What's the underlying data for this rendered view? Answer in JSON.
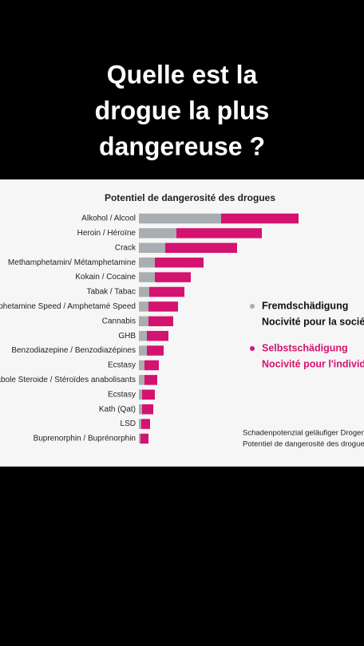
{
  "header": {
    "title_lines": [
      "Quelle est la",
      "drogue la plus",
      "dangereuse ?"
    ]
  },
  "chart_data": {
    "type": "bar",
    "orientation": "horizontal",
    "stacked": true,
    "title": "Potentiel de dangerosité des drogues",
    "categories": [
      "Alkohol / Alcool",
      "Heroin / Héroïne",
      "Crack",
      "Methamphetamin/ Métamphetamine",
      "Kokain / Cocaine",
      "Tabak / Tabac",
      "Amphetamine Speed / Amphetamé Speed",
      "Cannabis",
      "GHB",
      "Benzodiazepine / Benzodiazépines",
      "Ecstasy",
      "Anabole Steroide / Stéroïdes anabolisants",
      "Ecstasy",
      "Kath (Qat)",
      "LSD",
      "Buprenorphin / Buprénorphin"
    ],
    "series": [
      {
        "name": "Fremdschädigung",
        "name_fr": "Nocivité pour la société",
        "color": "#a8aeb1",
        "values": [
          51.5,
          23.5,
          16.5,
          10,
          10,
          6.5,
          6,
          6,
          5,
          5,
          3.5,
          3.5,
          2,
          2,
          1.5,
          1
        ]
      },
      {
        "name": "Selbstschädigung",
        "name_fr": "Nocivité pour l'individu",
        "color": "#d3136f",
        "values": [
          48.5,
          53.5,
          45,
          30.5,
          22.5,
          22,
          18.5,
          15.5,
          13.5,
          10.5,
          9,
          8,
          8,
          7,
          5.5,
          5
        ]
      }
    ],
    "xlim": [
      0,
      100
    ],
    "legend": "right",
    "source": [
      "Schadenpotenzial geläufiger Drogen",
      "Potentiel de dangerosité des drogues"
    ]
  }
}
